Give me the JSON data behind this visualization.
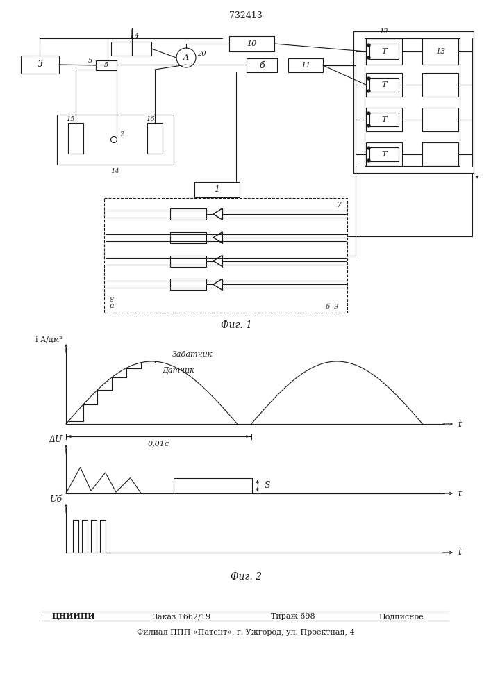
{
  "patent_number": "732413",
  "fig1_label": "Фиг. 1",
  "fig2_label": "Фиг. 2",
  "bottom_line1a": "ЦНИИПИ",
  "bottom_line1b": "Заказ 1662/19",
  "bottom_line1c": "Тираж 698",
  "bottom_line1d": "Подписное",
  "bottom_line2": "Филиал ППП «Патент», г. Ужгород, ул. Проектная, 4",
  "label_zadatchik": "Задатчик",
  "label_datchik": "Датчик",
  "label_001c": "0,01с",
  "label_i": "i A/дм²",
  "label_delta_v": "ΔU",
  "label_ub": "Uб",
  "label_s": "S",
  "bg_color": "#ffffff",
  "line_color": "#1a1a1a"
}
